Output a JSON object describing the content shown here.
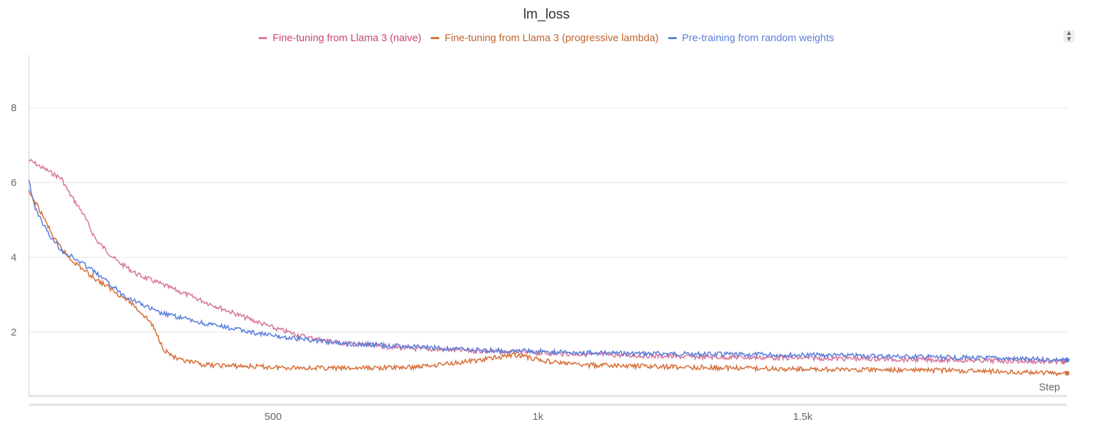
{
  "chart_data": {
    "type": "line",
    "title": "lm_loss",
    "xlabel": "Step",
    "ylabel": "",
    "xlim": [
      0,
      2000
    ],
    "ylim": [
      0.3,
      9.4
    ],
    "x_ticks": [
      {
        "v": 500,
        "label": "500"
      },
      {
        "v": 1000,
        "label": "1k"
      },
      {
        "v": 1500,
        "label": "1.5k"
      }
    ],
    "y_ticks": [
      {
        "v": 2,
        "label": "2"
      },
      {
        "v": 4,
        "label": "4"
      },
      {
        "v": 6,
        "label": "6"
      },
      {
        "v": 8,
        "label": "8"
      }
    ],
    "grid": true,
    "legend": "top",
    "series": [
      {
        "name": "Fine-tuning from Llama 3 (naive)",
        "color": "#d9779a",
        "text_color": "#c9446f",
        "x": [
          39,
          101,
          114,
          140,
          166,
          205,
          244,
          308,
          373,
          438,
          503,
          567,
          632,
          762,
          891,
          1021,
          1280,
          1539,
          1798,
          1992
        ],
        "y": [
          6.6,
          6.1,
          5.74,
          5.2,
          4.46,
          3.9,
          3.54,
          3.17,
          2.8,
          2.44,
          2.1,
          1.85,
          1.7,
          1.56,
          1.49,
          1.43,
          1.34,
          1.3,
          1.25,
          1.2
        ]
      },
      {
        "name": "Fine-tuning from Llama 3 (progressive lambda)",
        "color": "#d8703a",
        "text_color": "#c0632f",
        "x": [
          39,
          62,
          88,
          114,
          153,
          192,
          231,
          269,
          295,
          321,
          373,
          503,
          632,
          762,
          891,
          956,
          1021,
          1085,
          1280,
          1539,
          1798,
          1999
        ],
        "y": [
          5.74,
          5.2,
          4.46,
          4.0,
          3.54,
          3.17,
          2.8,
          2.26,
          1.52,
          1.25,
          1.12,
          1.06,
          1.03,
          1.06,
          1.25,
          1.4,
          1.21,
          1.12,
          1.06,
          1.0,
          0.97,
          0.9
        ]
      },
      {
        "name": "Pre-training from random weights",
        "color": "#5b7fdc",
        "text_color": "#5b7fdc",
        "x": [
          39,
          49,
          75,
          101,
          153,
          218,
          282,
          373,
          503,
          632,
          891,
          1150,
          1539,
          1798,
          1999
        ],
        "y": [
          6.07,
          5.38,
          4.64,
          4.18,
          3.72,
          2.99,
          2.53,
          2.22,
          1.89,
          1.7,
          1.52,
          1.43,
          1.38,
          1.32,
          1.25
        ]
      }
    ]
  }
}
